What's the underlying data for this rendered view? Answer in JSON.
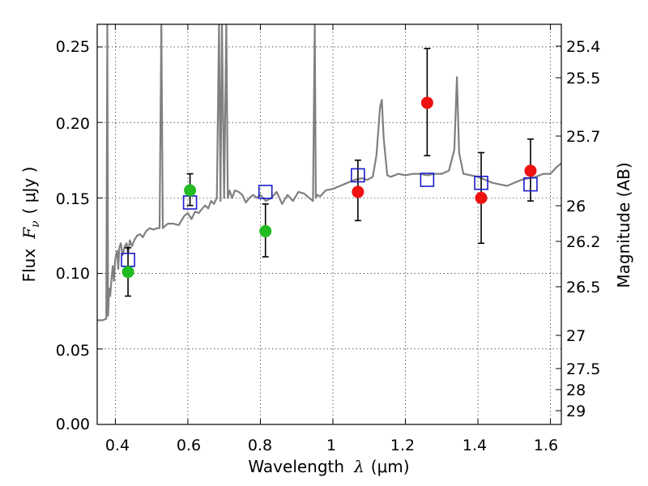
{
  "chart_data": {
    "type": "scatter",
    "xlabel": "Wavelength",
    "xlabel_symbol": "λ",
    "xlabel_unit": "(μm)",
    "ylabel": "Flux",
    "ylabel_symbol": "F",
    "ylabel_subscript": "ν",
    "ylabel_unit": "( μJy )",
    "y2label": "Magnitude (AB)",
    "xlim": [
      0.35,
      1.63
    ],
    "ylim": [
      0.0,
      0.265
    ],
    "grid": true,
    "x_ticks": [
      0.4,
      0.6,
      0.8,
      1.0,
      1.2,
      1.4,
      1.6
    ],
    "x_tick_labels": [
      "0.4",
      "0.6",
      "0.8",
      "1",
      "1.2",
      "1.4",
      "1.6"
    ],
    "y_ticks": [
      0.0,
      0.05,
      0.1,
      0.15,
      0.2,
      0.25
    ],
    "y_tick_labels": [
      "0.00",
      "0.05",
      "0.10",
      "0.15",
      "0.20",
      "0.25"
    ],
    "y2_tick_labels": [
      "25.4",
      "25.5",
      "25.7",
      "26",
      "26.2",
      "26.5",
      "27",
      "27.5",
      "28",
      "29"
    ],
    "colors": {
      "green": "#22bb22",
      "red": "#ee1111",
      "model": "#808080",
      "model_points": "#1a1acc"
    },
    "series": [
      {
        "name": "observed (green)",
        "marker": "circle",
        "color": "#22bb22",
        "points": [
          {
            "x": 0.435,
            "y": 0.101,
            "ylo": 0.085,
            "yhi": 0.117
          },
          {
            "x": 0.606,
            "y": 0.155,
            "ylo": 0.145,
            "yhi": 0.166
          },
          {
            "x": 0.814,
            "y": 0.128,
            "ylo": 0.111,
            "yhi": 0.146
          }
        ]
      },
      {
        "name": "observed (red)",
        "marker": "circle",
        "color": "#ee1111",
        "points": [
          {
            "x": 1.069,
            "y": 0.154,
            "ylo": 0.135,
            "yhi": 0.175
          },
          {
            "x": 1.26,
            "y": 0.213,
            "ylo": 0.178,
            "yhi": 0.249
          },
          {
            "x": 1.409,
            "y": 0.15,
            "ylo": 0.12,
            "yhi": 0.18
          },
          {
            "x": 1.545,
            "y": 0.168,
            "ylo": 0.148,
            "yhi": 0.189
          }
        ]
      },
      {
        "name": "model photometry",
        "marker": "square",
        "color": "#1a1acc",
        "points": [
          {
            "x": 0.435,
            "y": 0.109
          },
          {
            "x": 0.606,
            "y": 0.147
          },
          {
            "x": 0.814,
            "y": 0.154
          },
          {
            "x": 1.069,
            "y": 0.165
          },
          {
            "x": 1.26,
            "y": 0.162
          },
          {
            "x": 1.409,
            "y": 0.16
          },
          {
            "x": 1.545,
            "y": 0.159
          }
        ]
      },
      {
        "name": "model spectrum",
        "marker": "line",
        "color": "#808080",
        "x": [
          0.35,
          0.365,
          0.375,
          0.378,
          0.38,
          0.383,
          0.386,
          0.39,
          0.393,
          0.396,
          0.4,
          0.405,
          0.408,
          0.411,
          0.415,
          0.42,
          0.426,
          0.431,
          0.435,
          0.44,
          0.446,
          0.452,
          0.46,
          0.468,
          0.476,
          0.485,
          0.495,
          0.505,
          0.515,
          0.522,
          0.527,
          0.531,
          0.535,
          0.545,
          0.56,
          0.575,
          0.59,
          0.6,
          0.61,
          0.62,
          0.63,
          0.64,
          0.648,
          0.656,
          0.664,
          0.672,
          0.68,
          0.686,
          0.69,
          0.694,
          0.7,
          0.706,
          0.71,
          0.715,
          0.722,
          0.73,
          0.74,
          0.75,
          0.76,
          0.77,
          0.78,
          0.79,
          0.8,
          0.815,
          0.83,
          0.845,
          0.86,
          0.875,
          0.89,
          0.905,
          0.92,
          0.935,
          0.945,
          0.95,
          0.953,
          0.957,
          0.965,
          0.98,
          1.0,
          1.02,
          1.04,
          1.06,
          1.08,
          1.095,
          1.11,
          1.12,
          1.13,
          1.135,
          1.14,
          1.15,
          1.16,
          1.18,
          1.2,
          1.22,
          1.24,
          1.26,
          1.28,
          1.3,
          1.32,
          1.335,
          1.342,
          1.348,
          1.36,
          1.38,
          1.4,
          1.42,
          1.44,
          1.46,
          1.48,
          1.5,
          1.52,
          1.54,
          1.56,
          1.58,
          1.6,
          1.615,
          1.63
        ],
        "y": [
          0.069,
          0.069,
          0.07,
          0.265,
          0.072,
          0.09,
          0.085,
          0.098,
          0.105,
          0.095,
          0.11,
          0.115,
          0.103,
          0.117,
          0.12,
          0.112,
          0.118,
          0.12,
          0.113,
          0.122,
          0.118,
          0.122,
          0.125,
          0.126,
          0.124,
          0.128,
          0.13,
          0.129,
          0.13,
          0.13,
          0.265,
          0.13,
          0.131,
          0.133,
          0.133,
          0.132,
          0.138,
          0.14,
          0.136,
          0.141,
          0.14,
          0.143,
          0.145,
          0.143,
          0.148,
          0.146,
          0.15,
          0.265,
          0.148,
          0.265,
          0.15,
          0.265,
          0.15,
          0.155,
          0.15,
          0.155,
          0.154,
          0.152,
          0.147,
          0.15,
          0.152,
          0.15,
          0.152,
          0.148,
          0.15,
          0.154,
          0.146,
          0.152,
          0.148,
          0.154,
          0.153,
          0.15,
          0.148,
          0.265,
          0.15,
          0.152,
          0.151,
          0.155,
          0.156,
          0.158,
          0.16,
          0.162,
          0.163,
          0.162,
          0.164,
          0.178,
          0.21,
          0.215,
          0.19,
          0.165,
          0.164,
          0.166,
          0.165,
          0.166,
          0.166,
          0.165,
          0.166,
          0.166,
          0.168,
          0.182,
          0.23,
          0.18,
          0.166,
          0.165,
          0.164,
          0.162,
          0.16,
          0.159,
          0.158,
          0.16,
          0.162,
          0.163,
          0.164,
          0.166,
          0.166,
          0.17,
          0.173
        ]
      }
    ],
    "model_spikes": [
      {
        "x": 0.74,
        "y": 0.16
      },
      {
        "x": 1.18,
        "y": 0.168
      }
    ]
  }
}
